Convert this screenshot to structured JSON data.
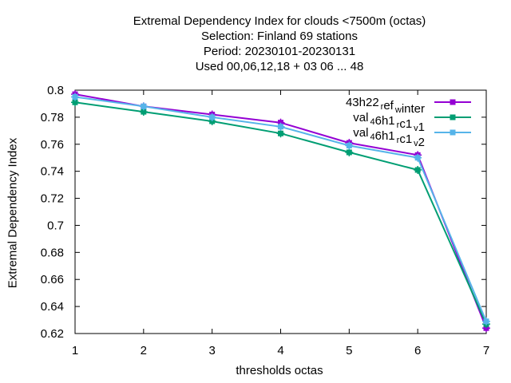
{
  "chart_data": {
    "type": "line",
    "title_lines": [
      "Extremal Dependency Index  for clouds <7500m (octas)",
      "Selection: Finland     69 stations",
      "Period: 20230101-20230131",
      "Used  00,06,12,18  + 03 06 ... 48"
    ],
    "xlabel": "thresholds octas",
    "ylabel": "Extremal Dependency Index",
    "x": [
      1,
      2,
      3,
      4,
      5,
      6,
      7
    ],
    "xlim": [
      1,
      7
    ],
    "ylim": [
      0.62,
      0.8
    ],
    "yticks": [
      "0.62",
      "0.64",
      "0.66",
      "0.68",
      "0.7",
      "0.72",
      "0.74",
      "0.76",
      "0.78",
      "0.8"
    ],
    "xticks": [
      "1",
      "2",
      "3",
      "4",
      "5",
      "6",
      "7"
    ],
    "legend_position": "top-right",
    "grid": false,
    "series": [
      {
        "name": "43h22_ref_winter",
        "legend": {
          "parts": [
            {
              "t": "43h22"
            },
            {
              "t": "r",
              "sub": true
            },
            {
              "t": "ef"
            },
            {
              "t": "w",
              "sub": true
            },
            {
              "t": "inter"
            }
          ]
        },
        "color": "#9400d3",
        "values": [
          0.797,
          0.788,
          0.782,
          0.776,
          0.761,
          0.752,
          0.624
        ]
      },
      {
        "name": "val_46h1_rc1_v1",
        "legend": {
          "parts": [
            {
              "t": "val"
            },
            {
              "t": "4",
              "sub": true
            },
            {
              "t": "6h1"
            },
            {
              "t": "r",
              "sub": true
            },
            {
              "t": "c1"
            },
            {
              "t": "v",
              "sub": true
            },
            {
              "t": "1"
            }
          ]
        },
        "color": "#009e73",
        "values": [
          0.791,
          0.784,
          0.777,
          0.768,
          0.754,
          0.741,
          0.627
        ]
      },
      {
        "name": "val_46h1_rc1_v2",
        "legend": {
          "parts": [
            {
              "t": "val"
            },
            {
              "t": "4",
              "sub": true
            },
            {
              "t": "6h1"
            },
            {
              "t": "r",
              "sub": true
            },
            {
              "t": "c1"
            },
            {
              "t": "v",
              "sub": true
            },
            {
              "t": "2"
            }
          ]
        },
        "color": "#56b4e9",
        "values": [
          0.795,
          0.788,
          0.78,
          0.773,
          0.759,
          0.75,
          0.629
        ]
      }
    ]
  }
}
